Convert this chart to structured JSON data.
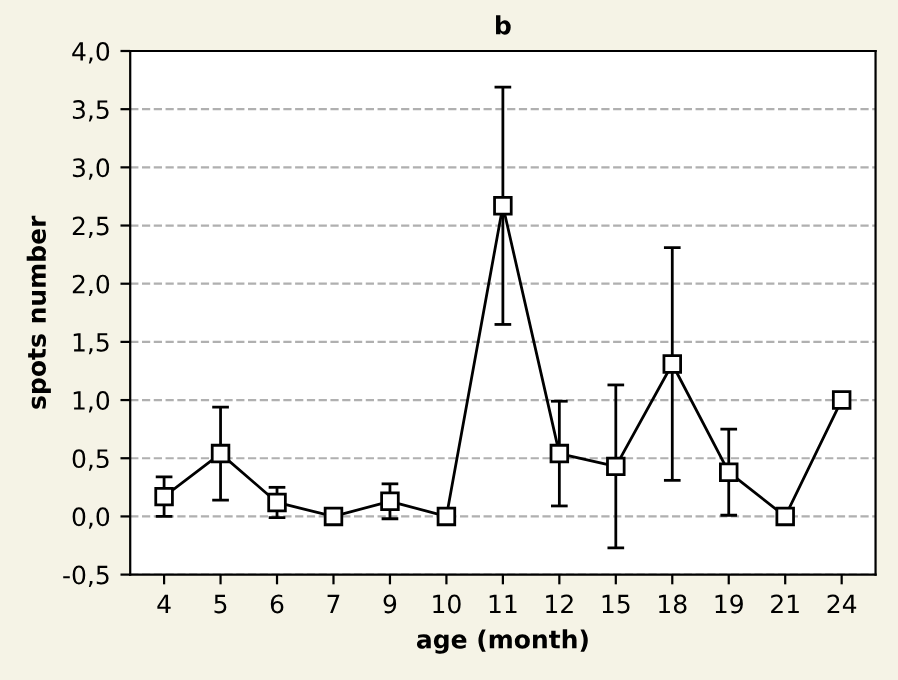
{
  "chart_data": {
    "type": "line",
    "title": "b",
    "xlabel": "age (month)",
    "ylabel": "spots number",
    "categories": [
      "4",
      "5",
      "6",
      "7",
      "9",
      "10",
      "11",
      "12",
      "15",
      "18",
      "19",
      "21",
      "24"
    ],
    "values": [
      0.17,
      0.54,
      0.12,
      0.0,
      0.13,
      0.0,
      2.67,
      0.54,
      0.43,
      1.31,
      0.38,
      0.0,
      1.0
    ],
    "errors": [
      0.17,
      0.4,
      0.13,
      null,
      0.15,
      null,
      1.02,
      0.45,
      0.7,
      1.0,
      0.37,
      null,
      null
    ],
    "color": "#000000",
    "marker": "square",
    "line_style": "solid",
    "ylim": [
      -0.5,
      4.0
    ],
    "yticks": [
      {
        "value": -0.5,
        "label": "-0,5"
      },
      {
        "value": 0.0,
        "label": "0,0"
      },
      {
        "value": 0.5,
        "label": "0,5"
      },
      {
        "value": 1.0,
        "label": "1,0"
      },
      {
        "value": 1.5,
        "label": "1,5"
      },
      {
        "value": 2.0,
        "label": "2,0"
      },
      {
        "value": 2.5,
        "label": "2,5"
      },
      {
        "value": 3.0,
        "label": "3,0"
      },
      {
        "value": 3.5,
        "label": "3,5"
      },
      {
        "value": 4.0,
        "label": "4,0"
      }
    ],
    "grid": "y"
  }
}
